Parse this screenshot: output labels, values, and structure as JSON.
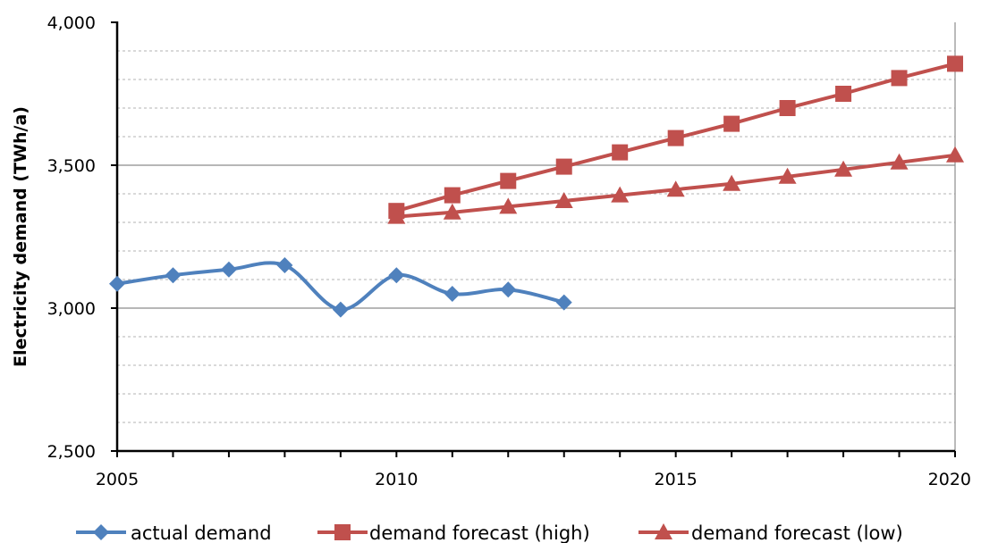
{
  "chart_data": {
    "type": "line",
    "title": "",
    "xlabel": "",
    "ylabel": "Electricity demand (TWh/a)",
    "xlim": [
      2005,
      2020
    ],
    "ylim": [
      2500,
      4000
    ],
    "x_ticks": [
      2005,
      2010,
      2015,
      2020
    ],
    "x_tick_labels": [
      "2005",
      "2010",
      "2015",
      "2020"
    ],
    "y_ticks": [
      2500,
      3000,
      3500,
      4000
    ],
    "y_tick_labels": [
      "2,500",
      "3,000",
      "3,500",
      "4,000"
    ],
    "minor_gridline_step": 100,
    "grid": true,
    "legend_position": "bottom",
    "series": [
      {
        "name": "actual demand",
        "color": "#4F81BD",
        "marker": "diamond",
        "smooth": true,
        "x": [
          2005,
          2006,
          2007,
          2008,
          2009,
          2010,
          2011,
          2012,
          2013
        ],
        "y": [
          3085,
          3115,
          3135,
          3150,
          2995,
          3115,
          3050,
          3065,
          3020
        ]
      },
      {
        "name": "demand forecast (high)",
        "color": "#C0504D",
        "marker": "square",
        "smooth": false,
        "x": [
          2010,
          2011,
          2012,
          2013,
          2014,
          2015,
          2016,
          2017,
          2018,
          2019,
          2020
        ],
        "y": [
          3340,
          3395,
          3445,
          3495,
          3545,
          3595,
          3645,
          3700,
          3750,
          3805,
          3855
        ]
      },
      {
        "name": "demand forecast (low)",
        "color": "#C0504D",
        "marker": "triangle",
        "smooth": false,
        "x": [
          2010,
          2011,
          2012,
          2013,
          2014,
          2015,
          2016,
          2017,
          2018,
          2019,
          2020
        ],
        "y": [
          3320,
          3335,
          3355,
          3375,
          3395,
          3415,
          3435,
          3460,
          3485,
          3510,
          3535
        ]
      }
    ]
  }
}
